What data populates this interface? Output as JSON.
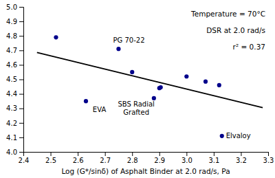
{
  "chart_data": {
    "type": "scatter",
    "x_label": "Log (G*/sinδ) of Asphalt Binder at 2.0 rad/s, Pa",
    "series": [
      {
        "type": "scatter",
        "marker": "circle",
        "color": "#00008B",
        "x": [
          2.52,
          2.63,
          2.75,
          2.8,
          2.88,
          2.9,
          2.905,
          3.0,
          3.07,
          3.12,
          3.13
        ],
        "values": [
          4.79,
          4.35,
          4.71,
          4.55,
          4.37,
          4.44,
          4.445,
          4.52,
          4.485,
          4.46,
          4.11
        ]
      },
      {
        "type": "line",
        "line_style": "solid",
        "color": "black",
        "x": [
          2.45,
          3.28
        ],
        "values": [
          4.685,
          4.305
        ]
      }
    ],
    "xlim": [
      2.4,
      3.3
    ],
    "ylim": [
      4.0,
      5.0
    ],
    "xticks": [
      2.4,
      2.5,
      2.6,
      2.7,
      2.8,
      2.9,
      {
        "value": 3.0,
        "label": "3.0"
      },
      3.1,
      3.2,
      3.3
    ],
    "yticks": [
      {
        "value": 4.0,
        "label": "4.0"
      },
      4.1,
      4.2,
      4.3,
      4.4,
      4.5,
      4.6,
      4.7,
      4.8,
      4.9,
      {
        "value": 5.0,
        "label": "5.0"
      }
    ],
    "grid": false,
    "annotations": [
      {
        "text": "EVA",
        "x": 2.655,
        "y": 4.275
      },
      {
        "text": "PG 70-22",
        "x": 2.73,
        "y": 4.755
      },
      {
        "text": "SBS Radial\nGrafted",
        "x": 2.815,
        "y": 4.255
      },
      {
        "text": "Elvaloy",
        "x": 3.145,
        "y": 4.095
      },
      {
        "text": "Temperature = 70°C"
      },
      {
        "text": "DSR at 2.0 rad/s"
      },
      {
        "text": "r² = 0.37"
      }
    ]
  }
}
